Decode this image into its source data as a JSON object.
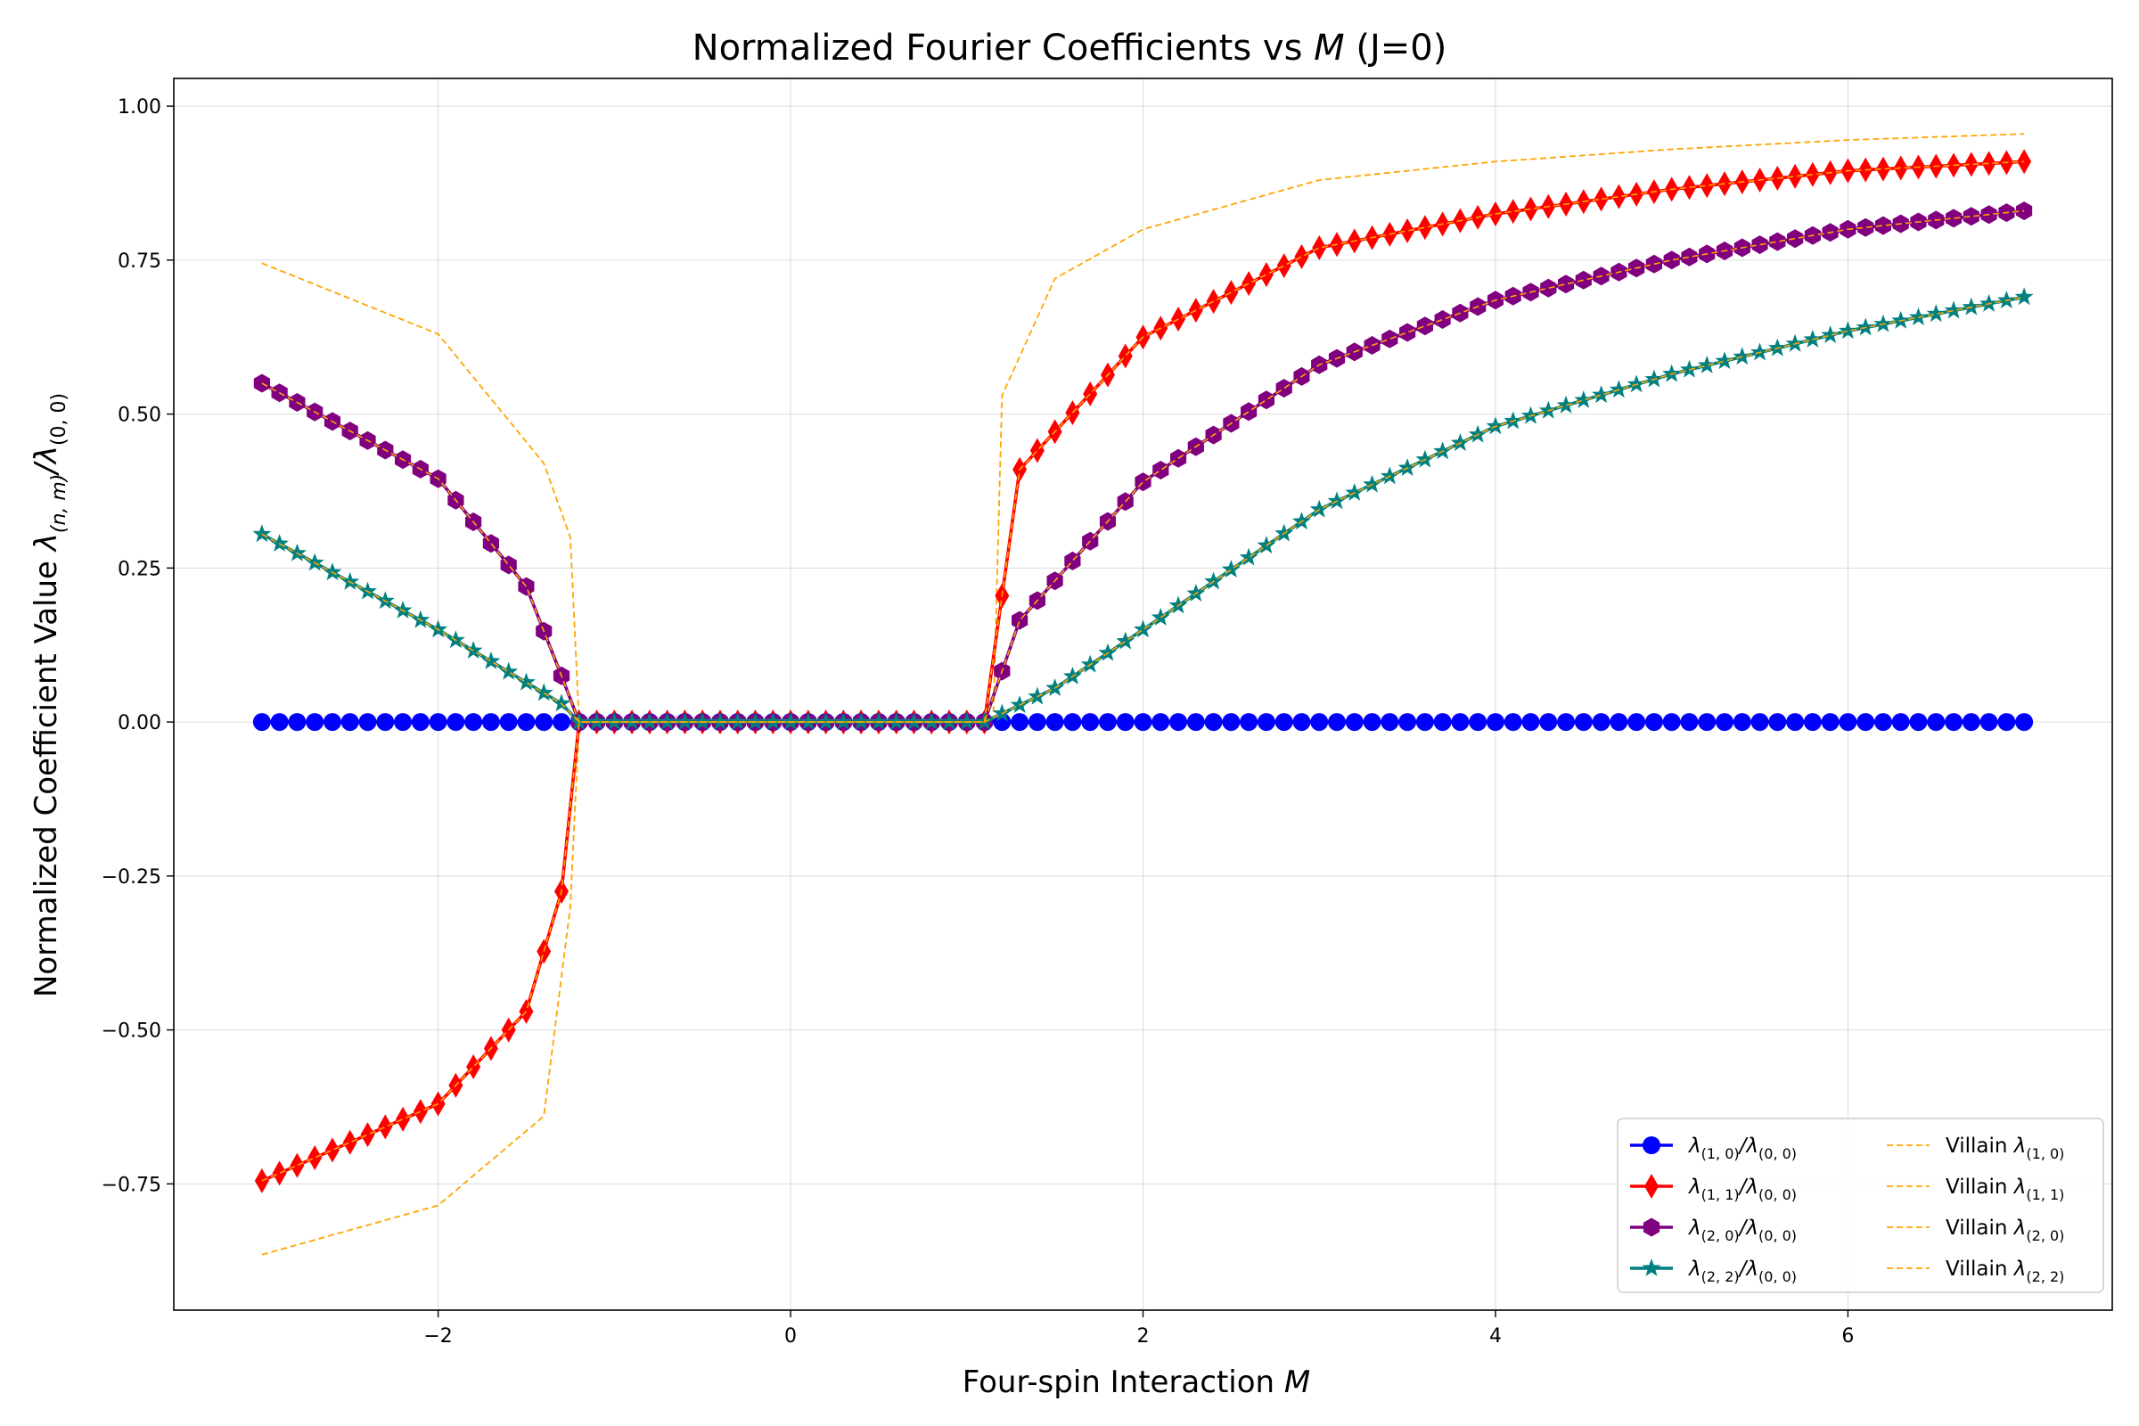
{
  "chart_data": {
    "type": "line",
    "title": "Normalized Fourier Coefficients vs M (J=0)",
    "title_parts": {
      "pre": "Normalized Fourier Coefficients vs ",
      "var": "M",
      "post": " (J=0)"
    },
    "xlabel": "Four-spin Interaction M",
    "xlabel_parts": {
      "pre": "Four-spin Interaction ",
      "var": "M"
    },
    "ylabel": "Normalized Coefficient Value λ(n,m)/λ(0,0)",
    "ylabel_parts": {
      "pre": "Normalized Coefficient Value ",
      "lam": "λ",
      "sub1": "(n, m)",
      "sep": "/λ",
      "sub2": "(0, 0)"
    },
    "xlim": [
      -3.5,
      7.5
    ],
    "ylim": [
      -0.955,
      1.045
    ],
    "xticks": [
      -2,
      0,
      2,
      4,
      6
    ],
    "xtick_labels": [
      "−2",
      "0",
      "2",
      "4",
      "6"
    ],
    "yticks": [
      -0.75,
      -0.5,
      -0.25,
      0,
      0.25,
      0.5,
      0.75,
      1.0
    ],
    "ytick_labels": [
      "−0.75",
      "−0.50",
      "−0.25",
      "0.00",
      "0.25",
      "0.50",
      "0.75",
      "1.00"
    ],
    "grid": true,
    "legend_position": "bottom-right",
    "x_range": [
      -3,
      7
    ],
    "n_points": 101,
    "series": [
      {
        "name": "λ(1,0)/λ(0,0)",
        "lam": "λ",
        "sub1": "(1, 0)",
        "sep": "/λ",
        "sub2": "(0, 0)",
        "color": "#0000ff",
        "marker": "circle",
        "kind": "zero"
      },
      {
        "name": "λ(1,1)/λ(0,0)",
        "lam": "λ",
        "sub1": "(1, 1)",
        "sep": "/λ",
        "sub2": "(0, 0)",
        "color": "#ff0000",
        "marker": "diamond",
        "kind": "lam11",
        "sample_points": [
          [
            -3,
            -0.745
          ],
          [
            -2,
            -0.62
          ],
          [
            -1.5,
            -0.47
          ],
          [
            -1.3,
            -0.275
          ],
          [
            -1.2,
            0
          ],
          [
            1.1,
            0
          ],
          [
            1.3,
            0.41
          ],
          [
            2,
            0.625
          ],
          [
            3,
            0.77
          ],
          [
            4,
            0.825
          ],
          [
            5,
            0.865
          ],
          [
            6,
            0.895
          ],
          [
            7,
            0.91
          ]
        ]
      },
      {
        "name": "λ(2,0)/λ(0,0)",
        "lam": "λ",
        "sub1": "(2, 0)",
        "sep": "/λ",
        "sub2": "(0, 0)",
        "color": "#800080",
        "marker": "hexagon",
        "kind": "lam20",
        "sample_points": [
          [
            -3,
            0.55
          ],
          [
            -2,
            0.395
          ],
          [
            -1.5,
            0.22
          ],
          [
            -1.3,
            0.075
          ],
          [
            -1.2,
            0
          ],
          [
            1.1,
            0
          ],
          [
            1.3,
            0.165
          ],
          [
            2,
            0.39
          ],
          [
            3,
            0.58
          ],
          [
            4,
            0.685
          ],
          [
            5,
            0.75
          ],
          [
            6,
            0.8
          ],
          [
            7,
            0.83
          ]
        ]
      },
      {
        "name": "λ(2,2)/λ(0,0)",
        "lam": "λ",
        "sub1": "(2, 2)",
        "sep": "/λ",
        "sub2": "(0, 0)",
        "color": "#008080",
        "marker": "star",
        "kind": "lam22",
        "sample_points": [
          [
            -3,
            0.305
          ],
          [
            -2,
            0.15
          ],
          [
            -1.3,
            0.03
          ],
          [
            -1.2,
            0
          ],
          [
            1.1,
            0
          ],
          [
            1.5,
            0.055
          ],
          [
            2,
            0.15
          ],
          [
            3,
            0.345
          ],
          [
            4,
            0.48
          ],
          [
            5,
            0.565
          ],
          [
            6,
            0.635
          ],
          [
            7,
            0.69
          ]
        ]
      }
    ],
    "villain_series": [
      {
        "name": "Villain λ(1,0)",
        "pre": "Villain ",
        "lam": "λ",
        "sub": "(1, 0)",
        "color": "#ffa500",
        "style": "dashed",
        "kind": "zero"
      },
      {
        "name": "Villain λ(1,1)",
        "pre": "Villain ",
        "lam": "λ",
        "sub": "(1, 1)",
        "color": "#ffa500",
        "style": "dashed",
        "kind": "v11"
      },
      {
        "name": "Villain λ(2,0)",
        "pre": "Villain ",
        "lam": "λ",
        "sub": "(2, 0)",
        "color": "#ffa500",
        "style": "dashed",
        "kind": "lam20"
      },
      {
        "name": "Villain λ(2,2)",
        "pre": "Villain ",
        "lam": "λ",
        "sub": "(2, 2)",
        "color": "#ffa500",
        "style": "dashed",
        "kind": "lam22"
      }
    ],
    "villain_samples": [
      [
        -3,
        0.745
      ],
      [
        -2,
        0.63
      ],
      [
        -1.4,
        0.42
      ],
      [
        -1.25,
        0.3
      ],
      [
        -1.2,
        0
      ],
      [
        -1.25,
        -0.3
      ],
      [
        -1.4,
        -0.64
      ],
      [
        -2,
        -0.785
      ],
      [
        -3,
        -0.865
      ],
      [
        1.2,
        0.53
      ],
      [
        1.5,
        0.72
      ],
      [
        2,
        0.8
      ],
      [
        3,
        0.88
      ],
      [
        4,
        0.91
      ],
      [
        5,
        0.93
      ],
      [
        6,
        0.945
      ],
      [
        7,
        0.955
      ]
    ]
  }
}
